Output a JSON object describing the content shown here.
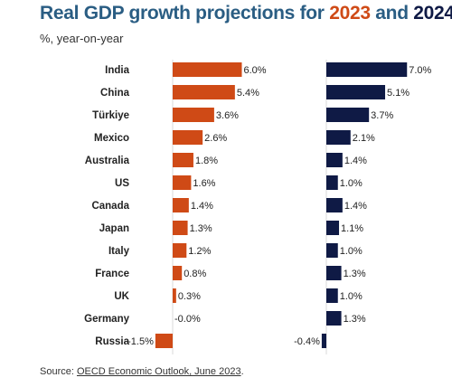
{
  "title": {
    "part1": "Real GDP growth projections for ",
    "year1": "2023",
    "part2": " and ",
    "year2": "2024"
  },
  "subtitle": "%, year-on-year",
  "source": {
    "prefix": "Source: ",
    "link_text": "OECD Economic Outlook, June 2023",
    "suffix": "."
  },
  "colors": {
    "y2023": "#cf4a16",
    "y2024": "#0f1a45",
    "title": "#2a5d83"
  },
  "chart_data": {
    "type": "bar",
    "orientation": "horizontal",
    "categories": [
      "India",
      "China",
      "Türkiye",
      "Mexico",
      "Australia",
      "US",
      "Canada",
      "Japan",
      "Italy",
      "France",
      "UK",
      "Germany",
      "Russia"
    ],
    "series": [
      {
        "name": "2023",
        "values": [
          6.0,
          5.4,
          3.6,
          2.6,
          1.8,
          1.6,
          1.4,
          1.3,
          1.2,
          0.8,
          0.3,
          -0.0,
          -1.5
        ],
        "labels": [
          "6.0%",
          "5.4%",
          "3.6%",
          "2.6%",
          "1.8%",
          "1.6%",
          "1.4%",
          "1.3%",
          "1.2%",
          "0.8%",
          "0.3%",
          "-0.0%",
          "-1.5%"
        ]
      },
      {
        "name": "2024",
        "values": [
          7.0,
          5.1,
          3.7,
          2.1,
          1.4,
          1.0,
          1.4,
          1.1,
          1.0,
          1.3,
          1.0,
          1.3,
          -0.4
        ],
        "labels": [
          "7.0%",
          "5.1%",
          "3.7%",
          "2.1%",
          "1.4%",
          "1.0%",
          "1.4%",
          "1.1%",
          "1.0%",
          "1.3%",
          "1.0%",
          "1.3%",
          "-0.4%"
        ]
      }
    ],
    "xlim": [
      -1.5,
      7.0
    ],
    "grid": false,
    "legend": "none"
  }
}
